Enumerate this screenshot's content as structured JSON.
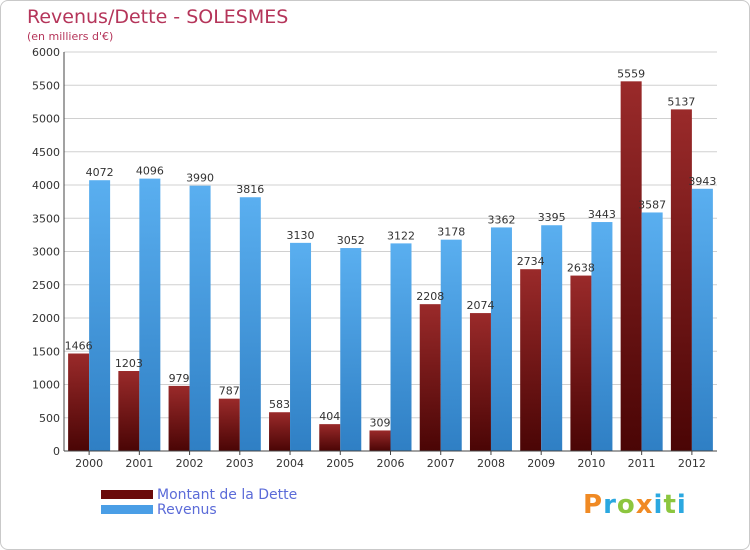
{
  "chart_data": {
    "type": "bar",
    "title": "Revenus/Dette - SOLESMES",
    "subtitle": "(en milliers d'€)",
    "categories": [
      "2000",
      "2001",
      "2002",
      "2003",
      "2004",
      "2005",
      "2006",
      "2007",
      "2008",
      "2009",
      "2010",
      "2011",
      "2012"
    ],
    "series": [
      {
        "name": "Montant de la Dette",
        "color": "#7a1414",
        "values": [
          1466,
          1203,
          979,
          787,
          583,
          404,
          309,
          2208,
          2074,
          2734,
          2638,
          5559,
          5137
        ]
      },
      {
        "name": "Revenus",
        "color": "#4a9ee6",
        "values": [
          4072,
          4096,
          3990,
          3816,
          3130,
          3052,
          3122,
          3178,
          3362,
          3395,
          3443,
          3587,
          3943
        ]
      }
    ],
    "ylim": [
      0,
      6000
    ],
    "yticks": [
      0,
      500,
      1000,
      1500,
      2000,
      2500,
      3000,
      3500,
      4000,
      4500,
      5000,
      5500,
      6000
    ],
    "grid": true,
    "legend_position": "bottom-left"
  },
  "logo": {
    "text": "Proxiti",
    "letters": [
      {
        "ch": "P",
        "color": "#f08a24"
      },
      {
        "ch": "r",
        "color": "#2ba8e0"
      },
      {
        "ch": "o",
        "color": "#8cc63f"
      },
      {
        "ch": "x",
        "color": "#f08a24"
      },
      {
        "ch": "i",
        "color": "#2ba8e0"
      },
      {
        "ch": "t",
        "color": "#8cc63f"
      },
      {
        "ch": "i",
        "color": "#2ba8e0"
      }
    ]
  }
}
